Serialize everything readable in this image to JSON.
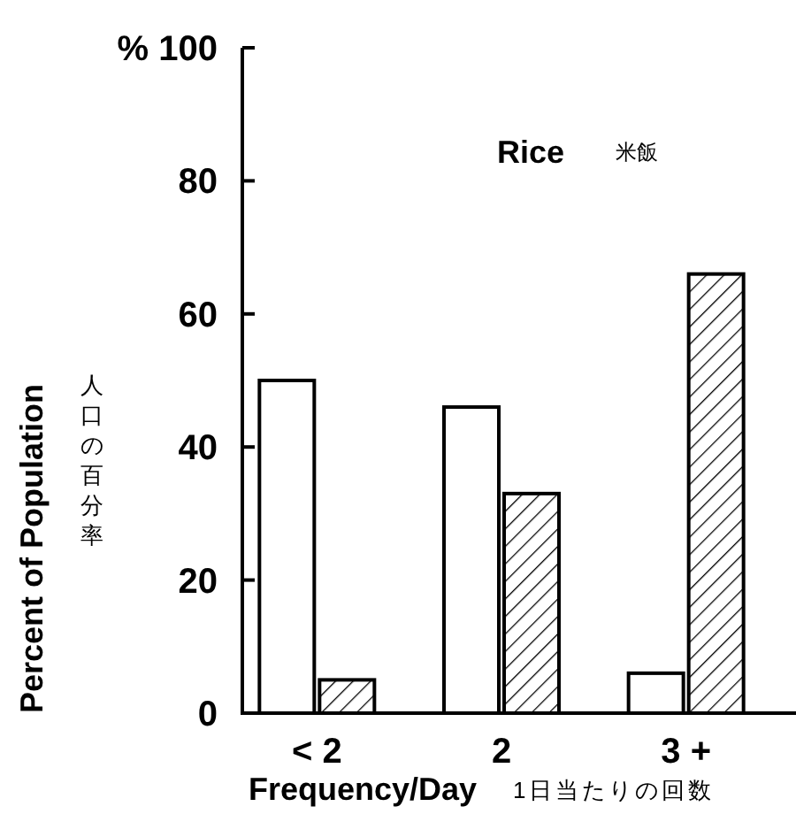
{
  "chart_data": {
    "type": "bar",
    "title": "Rice",
    "subtitle": "米飯",
    "ylabel": "Percent of Population",
    "xlabel": "Frequency/Day",
    "annotations": [
      "人口の百分率",
      "1日当たりの回数"
    ],
    "categories": [
      "< 2",
      "2",
      "3 +"
    ],
    "series": [
      {
        "color": "#ffffff",
        "values": [
          50,
          46,
          6
        ]
      },
      {
        "color": "#000000",
        "values": [
          5,
          33,
          66
        ]
      }
    ],
    "ylim": [
      0,
      100
    ],
    "yticks": [
      0,
      20,
      40,
      60,
      80,
      {
        "value": 100,
        "label": "% 100"
      }
    ],
    "grid": false
  }
}
